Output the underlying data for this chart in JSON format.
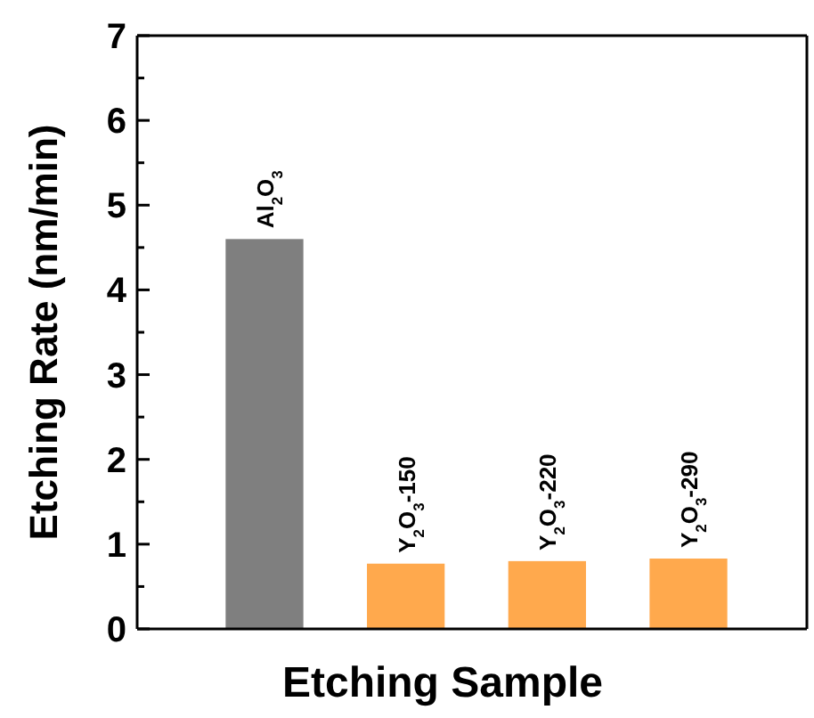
{
  "chart_data": {
    "type": "bar",
    "xlabel": "Etching Sample",
    "ylabel": "Etching Rate (nm/min)",
    "categories": [
      "Al$_{2}$O$_{3}$",
      "Y$_{2}$O$_{3}$-150",
      "Y$_{2}$O$_{3}$-220",
      "Y$_{2}$O$_{3}$-290"
    ],
    "values": [
      4.6,
      0.77,
      0.8,
      0.83
    ],
    "colors": [
      "#7f7f7f",
      "#ffa94d",
      "#ffa94d",
      "#ffa94d"
    ],
    "ylim": [
      0,
      7
    ],
    "yticks": [
      0,
      {
        "value": 0.5,
        "label": null
      },
      1,
      {
        "value": 1.5,
        "label": null
      },
      2,
      {
        "value": 2.5,
        "label": null
      },
      3,
      {
        "value": 3.5,
        "label": null
      },
      4,
      {
        "value": 4.5,
        "label": null
      },
      5,
      {
        "value": 5.5,
        "label": null
      },
      6,
      {
        "value": 6.5,
        "label": null
      },
      7
    ],
    "grid": false
  }
}
